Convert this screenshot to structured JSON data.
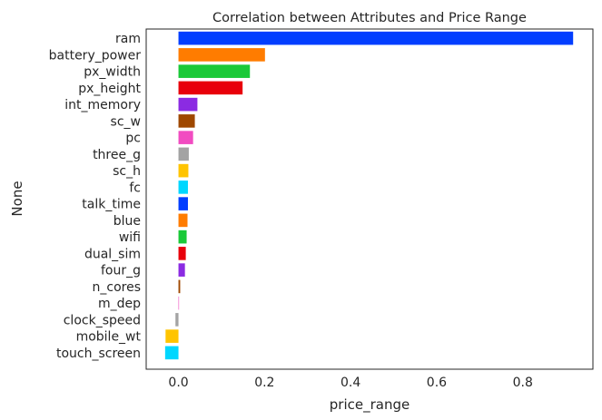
{
  "chart_data": {
    "type": "bar",
    "orientation": "horizontal",
    "title": "Correlation between Attributes and Price Range",
    "xlabel": "price_range",
    "ylabel": "None",
    "categories": [
      "ram",
      "battery_power",
      "px_width",
      "px_height",
      "int_memory",
      "sc_w",
      "pc",
      "three_g",
      "sc_h",
      "fc",
      "talk_time",
      "blue",
      "wifi",
      "dual_sim",
      "four_g",
      "n_cores",
      "m_dep",
      "clock_speed",
      "mobile_wt",
      "touch_screen"
    ],
    "values": [
      0.917,
      0.201,
      0.166,
      0.149,
      0.044,
      0.038,
      0.034,
      0.024,
      0.023,
      0.022,
      0.022,
      0.021,
      0.019,
      0.017,
      0.015,
      0.004,
      0.001,
      -0.007,
      -0.03,
      -0.031
    ],
    "colors": [
      "#023eff",
      "#ff7c00",
      "#1ac938",
      "#e8000b",
      "#8b2be2",
      "#9f4800",
      "#f14cc1",
      "#a3a3a3",
      "#ffc400",
      "#00d7ff",
      "#023eff",
      "#ff7c00",
      "#1ac938",
      "#e8000b",
      "#8b2be2",
      "#9f4800",
      "#f14cc1",
      "#a3a3a3",
      "#ffc400",
      "#00d7ff"
    ],
    "xticks": [
      0.0,
      0.2,
      0.4,
      0.6,
      0.8
    ],
    "xtick_labels": [
      "0.0",
      "0.2",
      "0.4",
      "0.6",
      "0.8"
    ],
    "xlim": [
      -0.075,
      0.963
    ],
    "grid": false,
    "legend": false
  }
}
